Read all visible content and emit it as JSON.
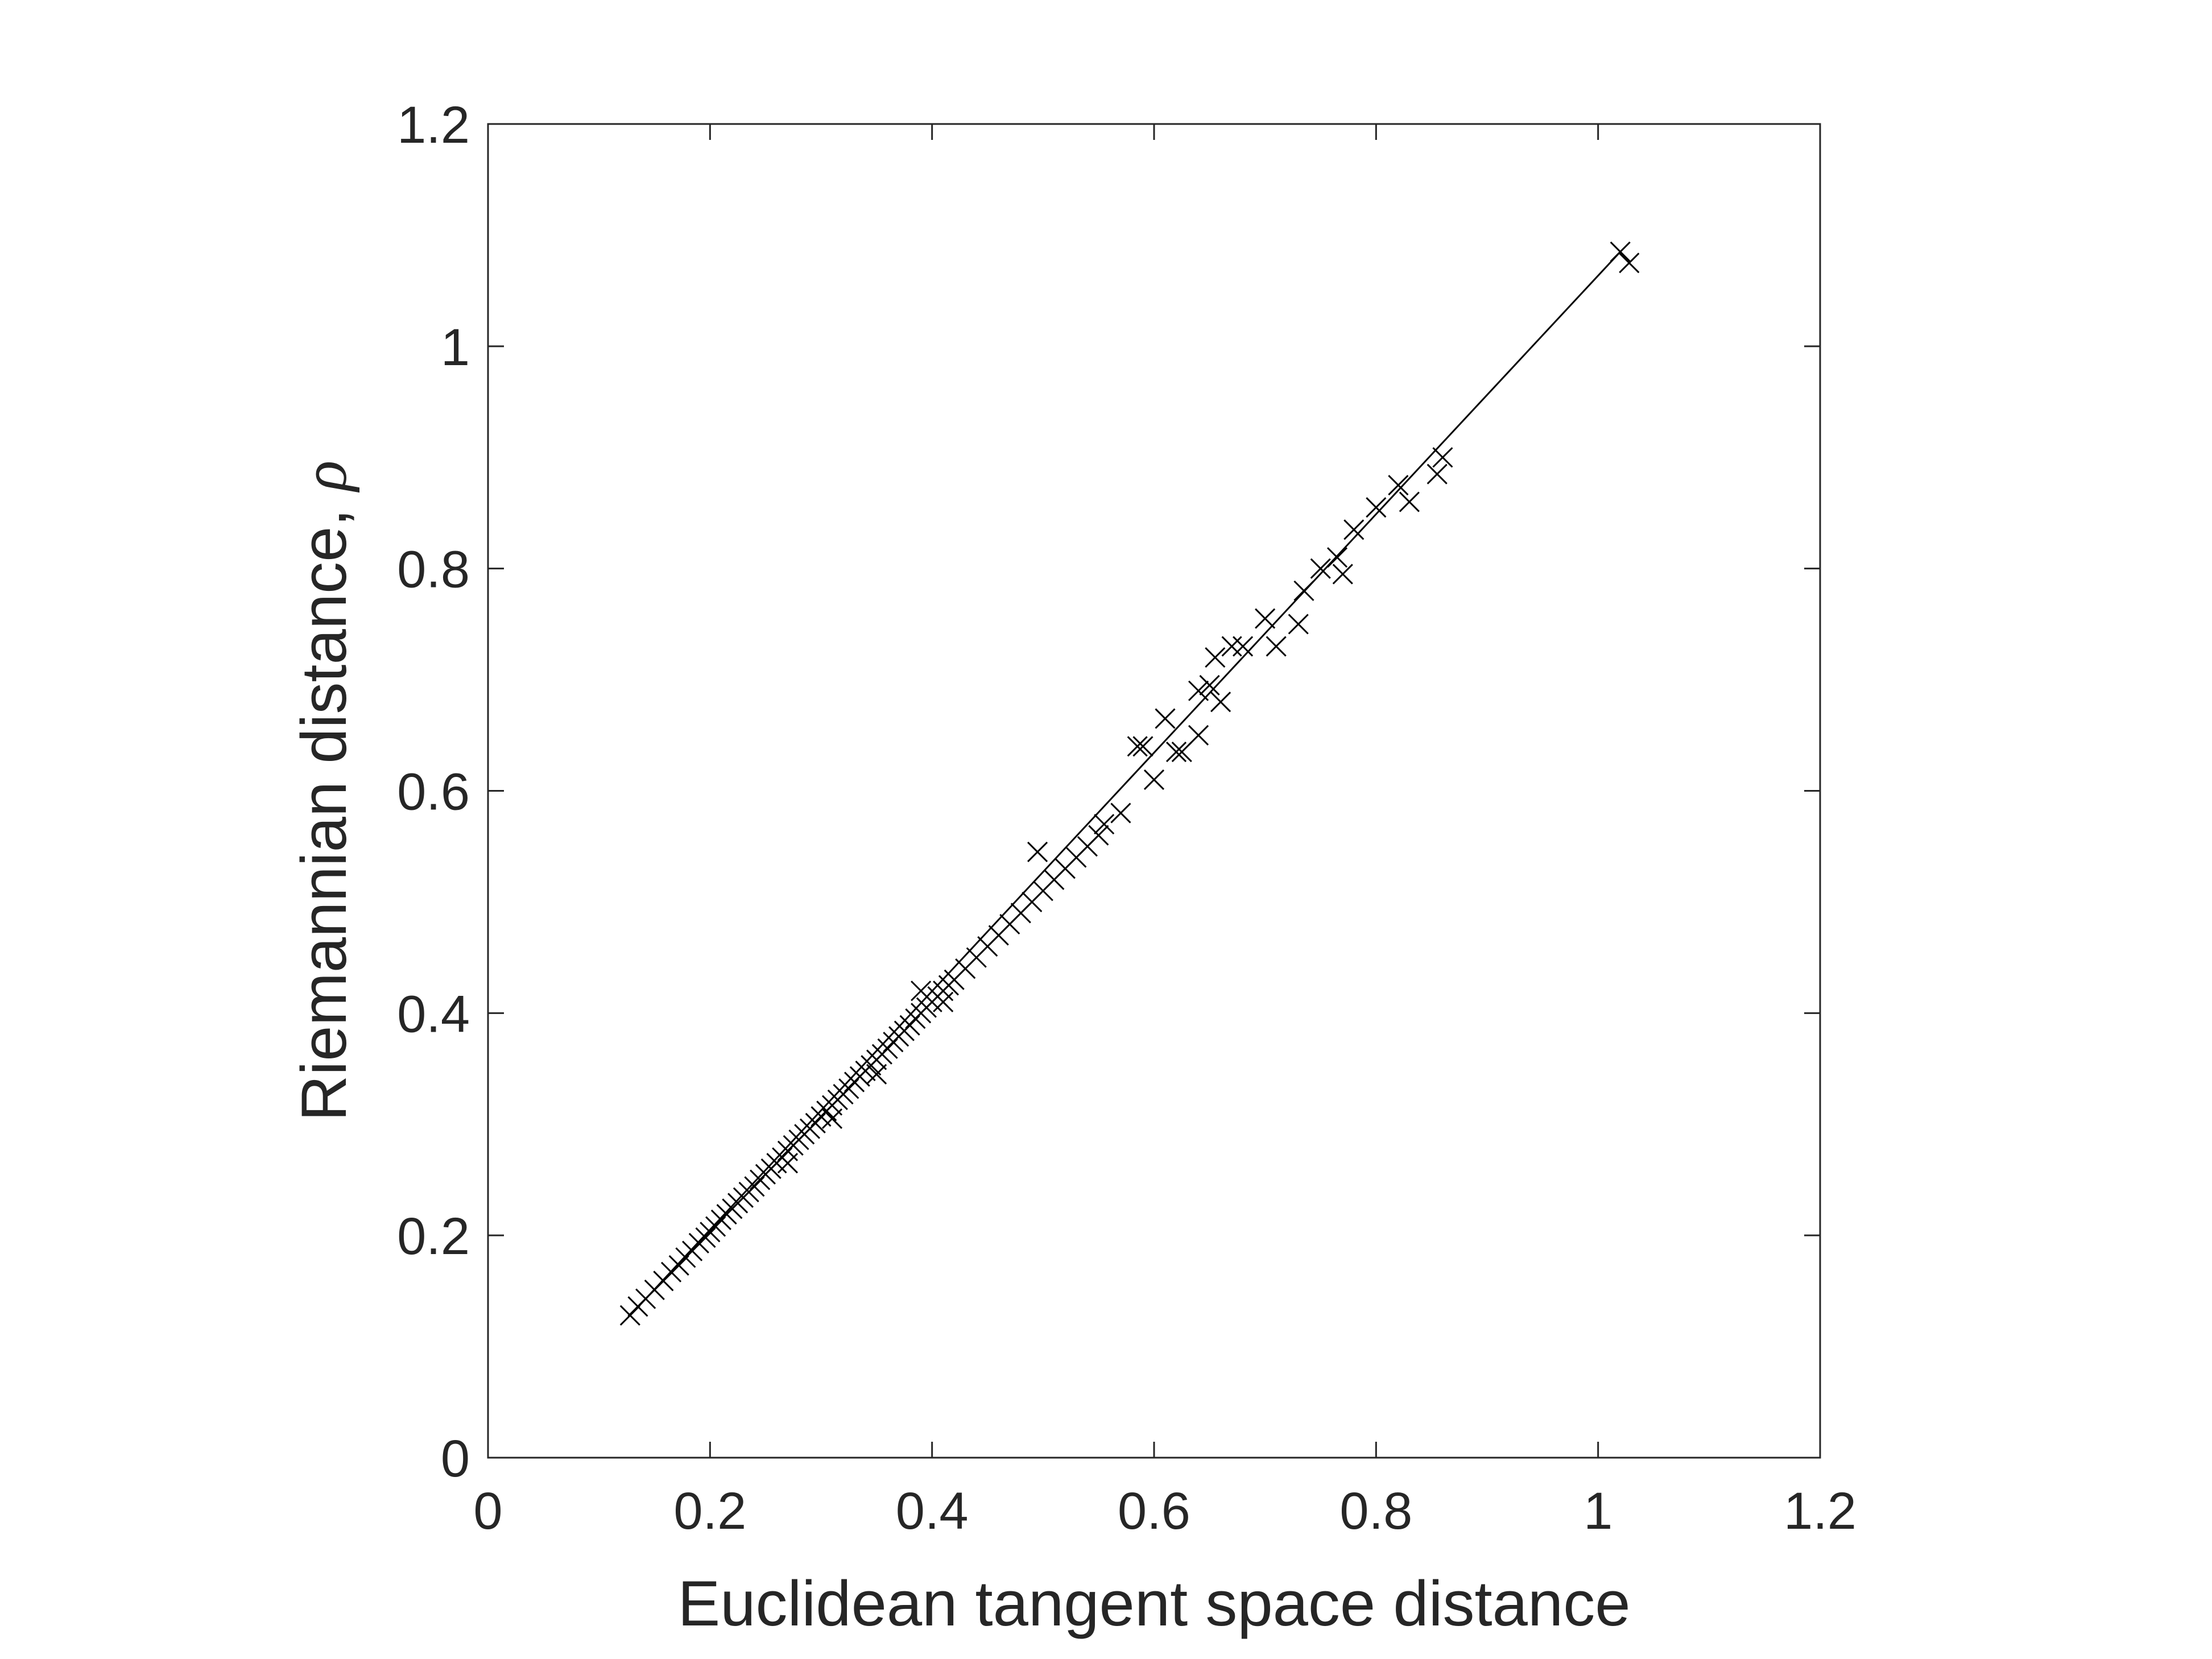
{
  "chart_data": {
    "type": "scatter",
    "title": "",
    "xlabel": "Euclidean tangent space distance",
    "ylabel_text": "Riemannian distance, ",
    "ylabel_symbol": "ρ",
    "xlim": [
      0,
      1.2
    ],
    "ylim": [
      0,
      1.2
    ],
    "xticks": [
      "0",
      "0.2",
      "0.4",
      "0.6",
      "0.8",
      "1",
      "1.2"
    ],
    "yticks": [
      "0",
      "0.2",
      "0.4",
      "0.6",
      "0.8",
      "1",
      "1.2"
    ],
    "grid": false,
    "marker": "x",
    "color": "#000000",
    "reference_line": {
      "x": [
        0.13,
        1.02
      ],
      "y": [
        0.13,
        1.085
      ]
    },
    "series": [
      {
        "x": [
          0.128,
          0.135,
          0.142,
          0.15,
          0.158,
          0.165,
          0.172,
          0.178,
          0.184,
          0.19,
          0.196,
          0.2,
          0.205,
          0.21,
          0.215,
          0.22,
          0.225,
          0.23,
          0.235,
          0.24,
          0.245,
          0.25,
          0.255,
          0.26,
          0.265,
          0.27,
          0.275,
          0.28,
          0.285,
          0.29,
          0.295,
          0.3,
          0.305,
          0.31,
          0.315,
          0.32,
          0.325,
          0.33,
          0.335,
          0.34,
          0.345,
          0.35,
          0.355,
          0.36,
          0.365,
          0.37,
          0.375,
          0.38,
          0.385,
          0.39,
          0.395,
          0.4,
          0.405,
          0.41,
          0.415,
          0.42,
          0.43,
          0.44,
          0.45,
          0.46,
          0.47,
          0.48,
          0.49,
          0.5,
          0.51,
          0.52,
          0.53,
          0.54,
          0.55,
          0.57,
          0.585,
          0.59,
          0.61,
          0.62,
          0.64,
          0.65,
          0.655,
          0.67,
          0.68,
          0.7,
          0.71,
          0.735,
          0.75,
          0.77,
          0.78,
          0.8,
          0.82,
          0.83,
          0.855,
          0.86,
          1.02,
          1.028,
          0.495,
          0.39,
          0.6,
          0.625,
          0.64,
          0.66,
          0.555,
          0.73,
          0.765,
          0.41,
          0.31,
          0.27,
          0.35
        ],
        "y": [
          0.128,
          0.136,
          0.143,
          0.151,
          0.159,
          0.167,
          0.173,
          0.18,
          0.186,
          0.193,
          0.198,
          0.203,
          0.208,
          0.214,
          0.219,
          0.224,
          0.229,
          0.234,
          0.239,
          0.244,
          0.25,
          0.255,
          0.26,
          0.265,
          0.27,
          0.276,
          0.281,
          0.286,
          0.291,
          0.296,
          0.301,
          0.307,
          0.312,
          0.317,
          0.322,
          0.327,
          0.332,
          0.338,
          0.343,
          0.348,
          0.353,
          0.358,
          0.363,
          0.368,
          0.374,
          0.379,
          0.384,
          0.389,
          0.395,
          0.4,
          0.405,
          0.41,
          0.415,
          0.42,
          0.425,
          0.43,
          0.44,
          0.45,
          0.46,
          0.47,
          0.48,
          0.49,
          0.5,
          0.51,
          0.52,
          0.53,
          0.54,
          0.55,
          0.56,
          0.58,
          0.64,
          0.64,
          0.665,
          0.635,
          0.69,
          0.695,
          0.72,
          0.73,
          0.73,
          0.755,
          0.73,
          0.78,
          0.8,
          0.795,
          0.835,
          0.855,
          0.875,
          0.86,
          0.885,
          0.9,
          1.085,
          1.075,
          0.545,
          0.42,
          0.61,
          0.635,
          0.65,
          0.68,
          0.57,
          0.75,
          0.81,
          0.41,
          0.305,
          0.265,
          0.345
        ]
      }
    ]
  }
}
